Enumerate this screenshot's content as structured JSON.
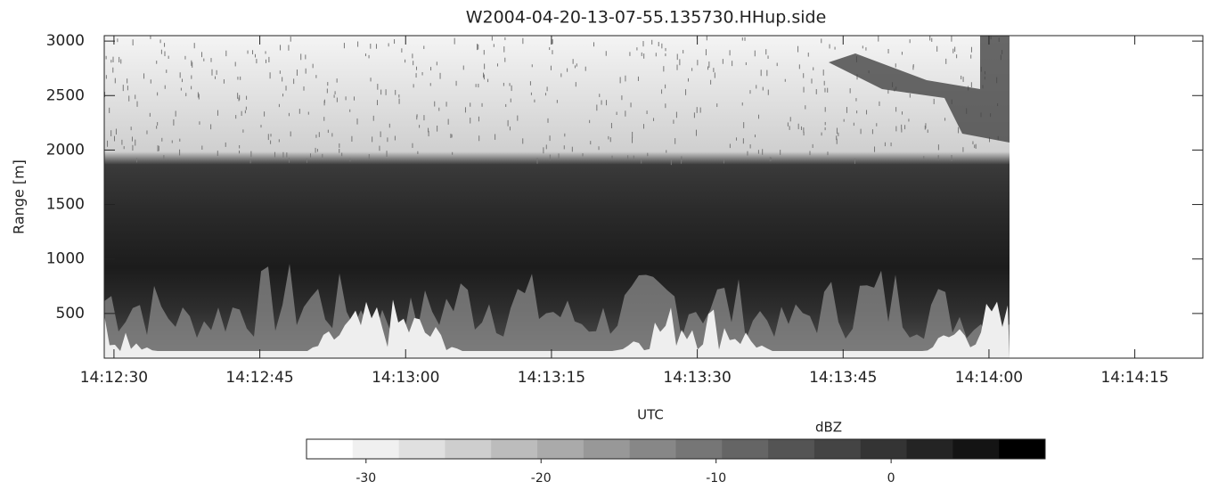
{
  "chart_data": {
    "type": "heatmap",
    "title": "W2004-04-20-13-07-55.135730.HHup.side",
    "xlabel": "UTC",
    "ylabel": "Range [m]",
    "xlim": [
      51149,
      51262
    ],
    "xticks": [
      {
        "value": 51150,
        "label": "14:12:30"
      },
      {
        "value": 51165,
        "label": "14:12:45"
      },
      {
        "value": 51180,
        "label": "14:13:00"
      },
      {
        "value": 51195,
        "label": "14:13:15"
      },
      {
        "value": 51210,
        "label": "14:13:30"
      },
      {
        "value": 51225,
        "label": "14:13:45"
      },
      {
        "value": 51240,
        "label": "14:14:00"
      },
      {
        "value": 51255,
        "label": "14:14:15"
      }
    ],
    "ylim": [
      90,
      3050
    ],
    "yticks": [
      500,
      1000,
      1500,
      2000,
      2500,
      3000
    ],
    "colorbar": {
      "label": "dBZ",
      "clim": [
        -33.4,
        8.8
      ],
      "ticks": [
        -30,
        -20,
        -10,
        0
      ],
      "colors": [
        "#ffffff",
        "#f0f0f0",
        "#e0e0e0",
        "#cecece",
        "#bcbcbc",
        "#aaaaaa",
        "#989898",
        "#878787",
        "#767676",
        "#656565",
        "#545454",
        "#444444",
        "#343434",
        "#242424",
        "#141414",
        "#000000"
      ]
    }
  }
}
